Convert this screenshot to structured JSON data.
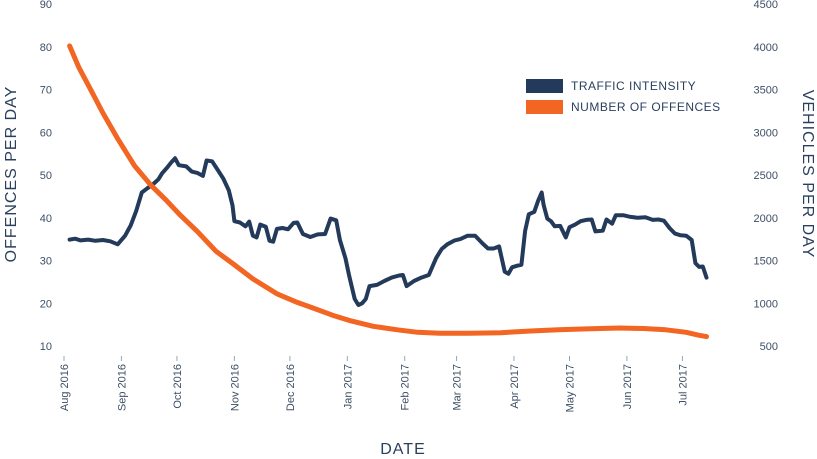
{
  "chart_data": {
    "type": "line",
    "xlabel": "DATE",
    "ylabel_left": "OFFENCES PER DAY",
    "ylabel_right": "VEHICLES PER DAY",
    "x_range": [
      "2016-08-01",
      "2017-07-31"
    ],
    "ylim_left": [
      10,
      90
    ],
    "ylim_right": [
      500,
      4500
    ],
    "yticks_left": [
      "10",
      "20",
      "30",
      "40",
      "50",
      "60",
      "70",
      "80",
      "90"
    ],
    "yticks_right": [
      "500",
      "1000",
      "1500",
      "2000",
      "2500",
      "3000",
      "3500",
      "4000",
      "4500"
    ],
    "xticks": [
      {
        "date": "2016-08-01",
        "label": "Aug 2016"
      },
      {
        "date": "2016-09-01",
        "label": "Sep 2016"
      },
      {
        "date": "2016-10-01",
        "label": "Oct 2016"
      },
      {
        "date": "2016-11-01",
        "label": "Nov 2016"
      },
      {
        "date": "2016-12-01",
        "label": "Dec 2016"
      },
      {
        "date": "2017-01-01",
        "label": "Jan 2017"
      },
      {
        "date": "2017-02-01",
        "label": "Feb 2017"
      },
      {
        "date": "2017-03-01",
        "label": "Mar 2017"
      },
      {
        "date": "2017-04-01",
        "label": "Apr 2017"
      },
      {
        "date": "2017-05-01",
        "label": "May 2017"
      },
      {
        "date": "2017-06-01",
        "label": "Jun 2017"
      },
      {
        "date": "2017-07-01",
        "label": "Jul 2017"
      }
    ],
    "legend_position": "top-right",
    "grid": false,
    "series": [
      {
        "name": "TRAFFIC INTENSITY",
        "axis": "right",
        "color": "#233a5a",
        "points": [
          [
            "2016-08-04",
            1745
          ],
          [
            "2016-08-07",
            1755
          ],
          [
            "2016-08-10",
            1735
          ],
          [
            "2016-08-14",
            1745
          ],
          [
            "2016-08-18",
            1730
          ],
          [
            "2016-08-22",
            1740
          ],
          [
            "2016-08-26",
            1725
          ],
          [
            "2016-08-30",
            1690
          ],
          [
            "2016-09-03",
            1790
          ],
          [
            "2016-09-06",
            1910
          ],
          [
            "2016-09-09",
            2080
          ],
          [
            "2016-09-12",
            2295
          ],
          [
            "2016-09-15",
            2345
          ],
          [
            "2016-09-18",
            2390
          ],
          [
            "2016-09-21",
            2450
          ],
          [
            "2016-09-23",
            2520
          ],
          [
            "2016-09-26",
            2595
          ],
          [
            "2016-09-28",
            2650
          ],
          [
            "2016-09-30",
            2695
          ],
          [
            "2016-10-02",
            2615
          ],
          [
            "2016-10-06",
            2600
          ],
          [
            "2016-10-09",
            2540
          ],
          [
            "2016-10-12",
            2525
          ],
          [
            "2016-10-15",
            2490
          ],
          [
            "2016-10-17",
            2670
          ],
          [
            "2016-10-20",
            2660
          ],
          [
            "2016-10-23",
            2560
          ],
          [
            "2016-10-26",
            2460
          ],
          [
            "2016-10-29",
            2320
          ],
          [
            "2016-10-31",
            2145
          ],
          [
            "2016-11-01",
            1960
          ],
          [
            "2016-11-04",
            1945
          ],
          [
            "2016-11-07",
            1900
          ],
          [
            "2016-11-09",
            1955
          ],
          [
            "2016-11-11",
            1790
          ],
          [
            "2016-11-13",
            1770
          ],
          [
            "2016-11-15",
            1920
          ],
          [
            "2016-11-18",
            1895
          ],
          [
            "2016-11-20",
            1730
          ],
          [
            "2016-11-22",
            1720
          ],
          [
            "2016-11-24",
            1870
          ],
          [
            "2016-11-27",
            1880
          ],
          [
            "2016-11-30",
            1865
          ],
          [
            "2016-12-03",
            1940
          ],
          [
            "2016-12-05",
            1945
          ],
          [
            "2016-12-08",
            1810
          ],
          [
            "2016-12-12",
            1775
          ],
          [
            "2016-12-16",
            1805
          ],
          [
            "2016-12-20",
            1810
          ],
          [
            "2016-12-23",
            1990
          ],
          [
            "2016-12-26",
            1970
          ],
          [
            "2016-12-28",
            1740
          ],
          [
            "2016-12-31",
            1525
          ],
          [
            "2017-01-02",
            1320
          ],
          [
            "2017-01-05",
            1050
          ],
          [
            "2017-01-07",
            980
          ],
          [
            "2017-01-09",
            1000
          ],
          [
            "2017-01-11",
            1050
          ],
          [
            "2017-01-13",
            1200
          ],
          [
            "2017-01-17",
            1215
          ],
          [
            "2017-01-21",
            1260
          ],
          [
            "2017-01-25",
            1300
          ],
          [
            "2017-01-29",
            1325
          ],
          [
            "2017-01-31",
            1330
          ],
          [
            "2017-02-02",
            1200
          ],
          [
            "2017-02-06",
            1260
          ],
          [
            "2017-02-10",
            1300
          ],
          [
            "2017-02-14",
            1330
          ],
          [
            "2017-02-18",
            1530
          ],
          [
            "2017-02-21",
            1635
          ],
          [
            "2017-02-24",
            1690
          ],
          [
            "2017-02-28",
            1735
          ],
          [
            "2017-03-03",
            1750
          ],
          [
            "2017-03-07",
            1790
          ],
          [
            "2017-03-11",
            1790
          ],
          [
            "2017-03-15",
            1700
          ],
          [
            "2017-03-18",
            1640
          ],
          [
            "2017-03-21",
            1640
          ],
          [
            "2017-03-24",
            1665
          ],
          [
            "2017-03-27",
            1370
          ],
          [
            "2017-03-29",
            1345
          ],
          [
            "2017-03-31",
            1420
          ],
          [
            "2017-04-03",
            1440
          ],
          [
            "2017-04-05",
            1450
          ],
          [
            "2017-04-07",
            1845
          ],
          [
            "2017-04-09",
            2040
          ],
          [
            "2017-04-12",
            2070
          ],
          [
            "2017-04-14",
            2195
          ],
          [
            "2017-04-16",
            2295
          ],
          [
            "2017-04-17",
            2150
          ],
          [
            "2017-04-19",
            1990
          ],
          [
            "2017-04-21",
            1960
          ],
          [
            "2017-04-23",
            1900
          ],
          [
            "2017-04-26",
            1905
          ],
          [
            "2017-04-29",
            1770
          ],
          [
            "2017-05-01",
            1890
          ],
          [
            "2017-05-04",
            1920
          ],
          [
            "2017-05-07",
            1960
          ],
          [
            "2017-05-10",
            1975
          ],
          [
            "2017-05-13",
            1980
          ],
          [
            "2017-05-15",
            1840
          ],
          [
            "2017-05-19",
            1850
          ],
          [
            "2017-05-21",
            1980
          ],
          [
            "2017-05-24",
            1930
          ],
          [
            "2017-05-26",
            2030
          ],
          [
            "2017-05-30",
            2030
          ],
          [
            "2017-06-03",
            2010
          ],
          [
            "2017-06-07",
            2000
          ],
          [
            "2017-06-11",
            2005
          ],
          [
            "2017-06-15",
            1975
          ],
          [
            "2017-06-18",
            1980
          ],
          [
            "2017-06-21",
            1965
          ],
          [
            "2017-06-24",
            1880
          ],
          [
            "2017-06-27",
            1815
          ],
          [
            "2017-06-30",
            1795
          ],
          [
            "2017-07-03",
            1790
          ],
          [
            "2017-07-06",
            1740
          ],
          [
            "2017-07-08",
            1470
          ],
          [
            "2017-07-10",
            1425
          ],
          [
            "2017-07-12",
            1430
          ],
          [
            "2017-07-14",
            1300
          ]
        ]
      },
      {
        "name": "NUMBER OF OFFENCES",
        "axis": "left",
        "color": "#f26522",
        "points": [
          [
            "2016-08-04",
            80.2
          ],
          [
            "2016-08-09",
            75.2
          ],
          [
            "2016-08-15",
            70.3
          ],
          [
            "2016-08-22",
            64.5
          ],
          [
            "2016-08-30",
            58.5
          ],
          [
            "2016-09-08",
            52.2
          ],
          [
            "2016-09-17",
            47.6
          ],
          [
            "2016-09-25",
            44.2
          ],
          [
            "2016-10-03",
            40.5
          ],
          [
            "2016-10-12",
            36.8
          ],
          [
            "2016-10-22",
            32.2
          ],
          [
            "2016-11-01",
            29.0
          ],
          [
            "2016-11-11",
            25.7
          ],
          [
            "2016-11-24",
            22.2
          ],
          [
            "2016-12-05",
            20.2
          ],
          [
            "2016-12-14",
            18.8
          ],
          [
            "2016-12-24",
            17.2
          ],
          [
            "2017-01-02",
            16.0
          ],
          [
            "2017-01-15",
            14.6
          ],
          [
            "2017-01-28",
            13.8
          ],
          [
            "2017-02-08",
            13.2
          ],
          [
            "2017-02-20",
            13.0
          ],
          [
            "2017-03-08",
            13.0
          ],
          [
            "2017-03-25",
            13.1
          ],
          [
            "2017-04-10",
            13.5
          ],
          [
            "2017-04-25",
            13.8
          ],
          [
            "2017-05-10",
            14.0
          ],
          [
            "2017-05-28",
            14.2
          ],
          [
            "2017-06-10",
            14.1
          ],
          [
            "2017-06-22",
            13.8
          ],
          [
            "2017-07-03",
            13.2
          ],
          [
            "2017-07-10",
            12.5
          ],
          [
            "2017-07-14",
            12.2
          ]
        ]
      }
    ]
  }
}
